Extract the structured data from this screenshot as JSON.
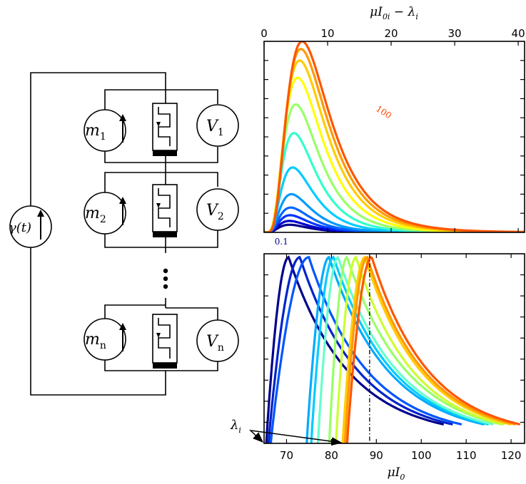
{
  "circuit": {
    "source_label": "γ(t)",
    "modules": [
      {
        "m_base": "m",
        "m_sub": "1",
        "v_base": "V",
        "v_sub": "1"
      },
      {
        "m_base": "m",
        "m_sub": "2",
        "v_base": "V",
        "v_sub": "2"
      },
      {
        "m_base": "m",
        "m_sub": "n",
        "v_base": "V",
        "v_sub": "n"
      }
    ],
    "ellipsis": "⋮"
  },
  "chart_data": [
    {
      "type": "line",
      "title": "",
      "xlabel": "μI0i − λi",
      "xlim": [
        0,
        41
      ],
      "xticks": [
        0,
        10,
        20,
        30,
        40
      ],
      "x_axis_position": "top",
      "ylim": [
        0,
        1
      ],
      "yticklabels": "none",
      "annotations": [
        {
          "text": "100",
          "x": 17.5,
          "y": 0.64,
          "color": "#ff4500"
        },
        {
          "text": "0.1",
          "x": 2.0,
          "y": -0.04,
          "color": "#00008b"
        }
      ],
      "series": [
        {
          "color": "#00008b",
          "peak_x": 4.0,
          "peak_y": 0.04
        },
        {
          "color": "#0000cd",
          "peak_x": 4.0,
          "peak_y": 0.06
        },
        {
          "color": "#0033ff",
          "peak_x": 4.1,
          "peak_y": 0.09
        },
        {
          "color": "#0066ff",
          "peak_x": 4.2,
          "peak_y": 0.13
        },
        {
          "color": "#0099ff",
          "peak_x": 4.3,
          "peak_y": 0.2
        },
        {
          "color": "#00ccff",
          "peak_x": 4.5,
          "peak_y": 0.34
        },
        {
          "color": "#33ffcc",
          "peak_x": 4.7,
          "peak_y": 0.52
        },
        {
          "color": "#99ff66",
          "peak_x": 5.0,
          "peak_y": 0.67
        },
        {
          "color": "#ffff00",
          "peak_x": 5.3,
          "peak_y": 0.81
        },
        {
          "color": "#ffcc00",
          "peak_x": 5.6,
          "peak_y": 0.9
        },
        {
          "color": "#ff9900",
          "peak_x": 5.8,
          "peak_y": 0.96
        },
        {
          "color": "#ff5500",
          "peak_x": 6.0,
          "peak_y": 1.0
        }
      ]
    },
    {
      "type": "line",
      "title": "",
      "xlabel": "μI0",
      "xlim": [
        65,
        123
      ],
      "xticks": [
        70,
        80,
        90,
        100,
        110,
        120
      ],
      "ylim": [
        0,
        1
      ],
      "yticklabels": "none",
      "vline_x": 88.5,
      "annotations": [
        {
          "text": "λi",
          "x": 64.3,
          "y": 0.1
        }
      ],
      "series": [
        {
          "color": "#00008b",
          "lambda": 65.5,
          "peak_x": 70.5,
          "end_x": 105
        },
        {
          "color": "#0022cc",
          "lambda": 66.0,
          "peak_x": 73.0,
          "end_x": 107
        },
        {
          "color": "#0055ff",
          "lambda": 66.5,
          "peak_x": 75.0,
          "end_x": 109
        },
        {
          "color": "#00aaff",
          "lambda": 74.5,
          "peak_x": 79.5,
          "end_x": 114
        },
        {
          "color": "#00ccff",
          "lambda": 75.5,
          "peak_x": 80.5,
          "end_x": 115
        },
        {
          "color": "#66ffcc",
          "lambda": 77.0,
          "peak_x": 81.5,
          "end_x": 116
        },
        {
          "color": "#99ff66",
          "lambda": 79.5,
          "peak_x": 83.5,
          "end_x": 118
        },
        {
          "color": "#ccff33",
          "lambda": 81.0,
          "peak_x": 85.5,
          "end_x": 118.5
        },
        {
          "color": "#ffcc00",
          "lambda": 82.5,
          "peak_x": 87.5,
          "end_x": 120
        },
        {
          "color": "#ff9900",
          "lambda": 83.0,
          "peak_x": 88.0,
          "end_x": 121
        },
        {
          "color": "#ff5500",
          "lambda": 83.5,
          "peak_x": 89.0,
          "end_x": 122
        }
      ]
    }
  ]
}
